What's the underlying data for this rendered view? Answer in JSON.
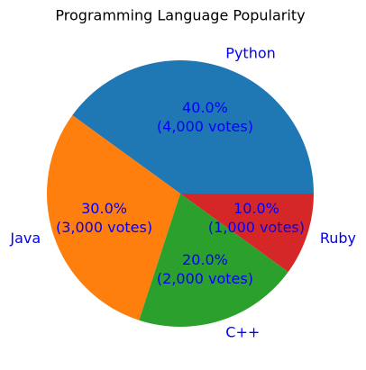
{
  "chart_data": {
    "type": "pie",
    "title": "Programming Language Popularity",
    "categories": [
      "Python",
      "Java",
      "C++",
      "Ruby"
    ],
    "values": [
      40,
      30,
      20,
      10
    ],
    "value_labels": [
      "40.0%\n(4,000 votes)",
      "30.0%\n(3,000 votes)",
      "20.0%\n(2,000 votes)",
      "10.0%\n(1,000 votes)"
    ],
    "colors": [
      "#1f77b4",
      "#ff7f0e",
      "#2ca02c",
      "#d62728"
    ],
    "label_color": "#0000ff"
  }
}
